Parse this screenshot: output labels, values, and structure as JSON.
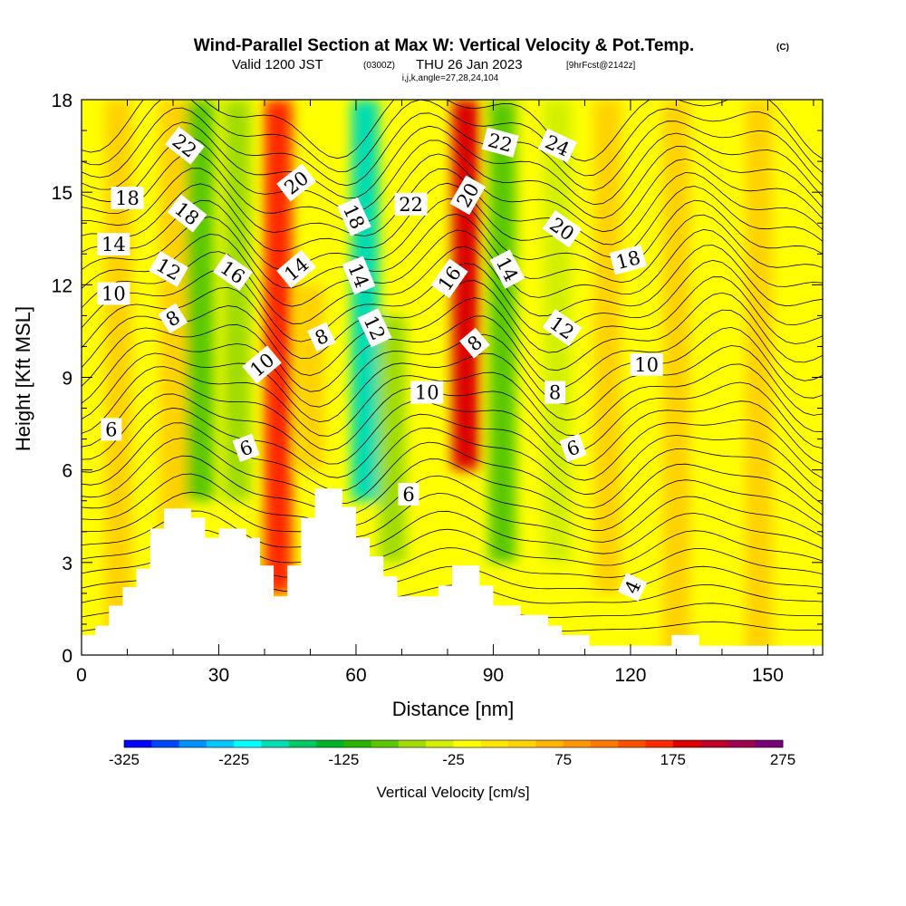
{
  "title": {
    "main": "Wind-Parallel Section at Max W: Vertical Velocity & Pot.Temp.",
    "copyright": "(C)",
    "valid_prefix": "Valid 1200 JST",
    "valid_utc": "(0300Z)",
    "valid_date": "THU 26 Jan 2023",
    "forecast": "[9hrFcst@2142z]",
    "section_indices": "i,j,k,angle=27,28,24,104"
  },
  "chart_data": {
    "type": "heatmap",
    "xlabel": "Distance [nm]",
    "ylabel": "Height [Kft MSL]",
    "xlim": [
      0,
      162
    ],
    "ylim": [
      0,
      18
    ],
    "x_ticks": [
      0,
      30,
      60,
      90,
      120,
      150
    ],
    "y_ticks": [
      0,
      3,
      6,
      9,
      12,
      15,
      18
    ],
    "colorbar": {
      "label": "Vertical Velocity [cm/s]",
      "min": -325,
      "max": 275,
      "step": 25,
      "tick_values": [
        -325,
        -225,
        -125,
        -25,
        75,
        175,
        275
      ],
      "tick_labels": [
        "-325",
        "-225",
        "-125",
        "-25",
        "75",
        "175",
        "275"
      ],
      "colors": [
        "#0000ff",
        "#0046ff",
        "#0091ff",
        "#00c8ff",
        "#00ffff",
        "#00dcb4",
        "#00c864",
        "#00b428",
        "#28b400",
        "#5ac800",
        "#a0dc00",
        "#d2f000",
        "#ffff00",
        "#ffe600",
        "#ffd200",
        "#ffb400",
        "#ff9600",
        "#ff7800",
        "#ff5000",
        "#ff2800",
        "#dc0000",
        "#be0028",
        "#a00050",
        "#780078"
      ]
    },
    "background_level": "-25 to 0",
    "vertical_velocity_bands": [
      {
        "x": 8,
        "height_range": [
          0,
          18
        ],
        "value": 25
      },
      {
        "x": 20,
        "height_range": [
          0,
          18
        ],
        "value": 25
      },
      {
        "x": 26,
        "height_range": [
          5,
          18
        ],
        "value": -100
      },
      {
        "x": 34,
        "height_range": [
          5,
          18
        ],
        "value": -75
      },
      {
        "x": 43,
        "height_range": [
          2,
          18
        ],
        "value": 150
      },
      {
        "x": 50,
        "height_range": [
          6,
          12
        ],
        "value": 25
      },
      {
        "x": 62,
        "height_range": [
          5,
          18
        ],
        "value": -200
      },
      {
        "x": 68,
        "height_range": [
          3,
          11
        ],
        "value": -75
      },
      {
        "x": 84,
        "height_range": [
          6,
          18
        ],
        "value": 175
      },
      {
        "x": 92,
        "height_range": [
          3,
          18
        ],
        "value": -100
      },
      {
        "x": 104,
        "height_range": [
          3,
          18
        ],
        "value": -50
      },
      {
        "x": 115,
        "height_range": [
          2,
          18
        ],
        "value": 25
      },
      {
        "x": 130,
        "height_range": [
          0,
          18
        ],
        "value": 25
      },
      {
        "x": 148,
        "height_range": [
          0,
          18
        ],
        "value": 25
      },
      {
        "x": 158,
        "height_range": [
          11,
          18
        ],
        "value": -25
      }
    ],
    "terrain": [
      [
        0,
        0.65
      ],
      [
        3,
        0.65
      ],
      [
        3,
        0.95
      ],
      [
        6,
        0.95
      ],
      [
        6,
        1.6
      ],
      [
        9,
        1.6
      ],
      [
        9,
        2.2
      ],
      [
        12,
        2.2
      ],
      [
        12,
        2.8
      ],
      [
        15,
        2.8
      ],
      [
        15,
        4.1
      ],
      [
        18,
        4.1
      ],
      [
        18,
        4.75
      ],
      [
        24,
        4.75
      ],
      [
        24,
        4.45
      ],
      [
        27,
        4.45
      ],
      [
        27,
        3.8
      ],
      [
        30,
        3.8
      ],
      [
        30,
        4.1
      ],
      [
        36,
        4.1
      ],
      [
        36,
        3.8
      ],
      [
        39,
        3.8
      ],
      [
        39,
        2.9
      ],
      [
        42,
        2.9
      ],
      [
        42,
        1.9
      ],
      [
        45,
        1.9
      ],
      [
        45,
        2.9
      ],
      [
        48,
        2.9
      ],
      [
        48,
        4.45
      ],
      [
        51,
        4.45
      ],
      [
        51,
        5.4
      ],
      [
        57,
        5.4
      ],
      [
        57,
        4.8
      ],
      [
        60,
        4.8
      ],
      [
        60,
        3.8
      ],
      [
        63,
        3.8
      ],
      [
        63,
        3.2
      ],
      [
        66,
        3.2
      ],
      [
        66,
        2.55
      ],
      [
        69,
        2.55
      ],
      [
        69,
        1.9
      ],
      [
        78,
        1.9
      ],
      [
        78,
        2.25
      ],
      [
        81,
        2.25
      ],
      [
        81,
        2.9
      ],
      [
        87,
        2.9
      ],
      [
        87,
        2.25
      ],
      [
        90,
        2.25
      ],
      [
        90,
        1.6
      ],
      [
        96,
        1.6
      ],
      [
        96,
        1.3
      ],
      [
        102,
        1.3
      ],
      [
        102,
        0.95
      ],
      [
        105,
        0.95
      ],
      [
        105,
        0.65
      ],
      [
        111,
        0.65
      ],
      [
        111,
        0.3
      ],
      [
        129,
        0.3
      ],
      [
        129,
        0.65
      ],
      [
        135,
        0.65
      ],
      [
        135,
        0.3
      ],
      [
        162,
        0.3
      ]
    ],
    "theta_contour_labels": [
      {
        "text": "22",
        "x": 22.5,
        "y": 16.5,
        "angle": 38
      },
      {
        "text": "18",
        "x": 10,
        "y": 14.8,
        "angle": 0
      },
      {
        "text": "18",
        "x": 23,
        "y": 14.3,
        "angle": 38
      },
      {
        "text": "14",
        "x": 7,
        "y": 13.3,
        "angle": 0
      },
      {
        "text": "12",
        "x": 19,
        "y": 12.5,
        "angle": 30
      },
      {
        "text": "10",
        "x": 7,
        "y": 11.7,
        "angle": 0
      },
      {
        "text": "8",
        "x": 20,
        "y": 10.9,
        "angle": -32
      },
      {
        "text": "16",
        "x": 33,
        "y": 12.4,
        "angle": 35
      },
      {
        "text": "20",
        "x": 47,
        "y": 15.3,
        "angle": -38
      },
      {
        "text": "14",
        "x": 47,
        "y": 12.5,
        "angle": -40
      },
      {
        "text": "10",
        "x": 39.5,
        "y": 9.4,
        "angle": -40
      },
      {
        "text": "8",
        "x": 52.5,
        "y": 10.3,
        "angle": -25
      },
      {
        "text": "6",
        "x": 36,
        "y": 6.7,
        "angle": -20
      },
      {
        "text": "6",
        "x": 6.5,
        "y": 7.3,
        "angle": 0
      },
      {
        "text": "18",
        "x": 59.5,
        "y": 14.2,
        "angle": 65
      },
      {
        "text": "14",
        "x": 60.5,
        "y": 12.3,
        "angle": 68
      },
      {
        "text": "12",
        "x": 64,
        "y": 10.6,
        "angle": 65
      },
      {
        "text": "22",
        "x": 72,
        "y": 14.6,
        "angle": 0
      },
      {
        "text": "20",
        "x": 84.5,
        "y": 14.9,
        "angle": -60
      },
      {
        "text": "16",
        "x": 80.5,
        "y": 12.2,
        "angle": -55
      },
      {
        "text": "8",
        "x": 86,
        "y": 10.1,
        "angle": -40
      },
      {
        "text": "10",
        "x": 75.5,
        "y": 8.5,
        "angle": 0
      },
      {
        "text": "6",
        "x": 71.5,
        "y": 5.2,
        "angle": 0
      },
      {
        "text": "22",
        "x": 91.5,
        "y": 16.6,
        "angle": 15
      },
      {
        "text": "24",
        "x": 104,
        "y": 16.5,
        "angle": 25
      },
      {
        "text": "20",
        "x": 105,
        "y": 13.8,
        "angle": 35
      },
      {
        "text": "14",
        "x": 93,
        "y": 12.5,
        "angle": 62
      },
      {
        "text": "12",
        "x": 105,
        "y": 10.6,
        "angle": 35
      },
      {
        "text": "8",
        "x": 103.5,
        "y": 8.5,
        "angle": 0
      },
      {
        "text": "6",
        "x": 107.5,
        "y": 6.7,
        "angle": -20
      },
      {
        "text": "18",
        "x": 119.5,
        "y": 12.8,
        "angle": -15
      },
      {
        "text": "10",
        "x": 123.5,
        "y": 9.4,
        "angle": 0
      },
      {
        "text": "4",
        "x": 120.5,
        "y": 2.2,
        "angle": -65
      }
    ]
  }
}
